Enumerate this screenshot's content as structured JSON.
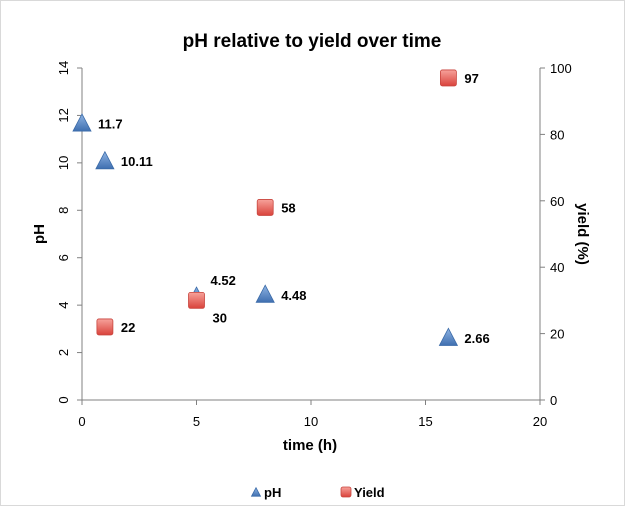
{
  "chart_data": {
    "type": "scatter",
    "title": "pH relative to yield over time",
    "xlabel": "time (h)",
    "ylabel": "pH",
    "y2label": "yield (%)",
    "xlim": [
      0,
      20
    ],
    "ylim": [
      0,
      14
    ],
    "y2lim": [
      0,
      100
    ],
    "x_ticks": [
      "0",
      "5",
      "10",
      "15",
      "20"
    ],
    "y_ticks": [
      "0",
      "2",
      "4",
      "6",
      "8",
      "10",
      "12",
      "14"
    ],
    "y2_ticks": [
      "0",
      "20",
      "40",
      "60",
      "80",
      "100"
    ],
    "grid": false,
    "legend_position": "bottom",
    "series": [
      {
        "name": "pH",
        "axis": "left",
        "marker": "triangle",
        "color": "#4f81bd",
        "points": [
          {
            "x": 0,
            "y": 11.7,
            "label": "11.7"
          },
          {
            "x": 1,
            "y": 10.11,
            "label": "10.11"
          },
          {
            "x": 5,
            "y": 4.52,
            "label": "4.52"
          },
          {
            "x": 8,
            "y": 4.48,
            "label": "4.48"
          },
          {
            "x": 16,
            "y": 2.66,
            "label": "2.66"
          }
        ]
      },
      {
        "name": "Yield",
        "axis": "right",
        "marker": "square",
        "color": "#e8605a",
        "points": [
          {
            "x": 1,
            "y": 22,
            "label": "22"
          },
          {
            "x": 5,
            "y": 30,
            "label": "30"
          },
          {
            "x": 8,
            "y": 58,
            "label": "58"
          },
          {
            "x": 16,
            "y": 97,
            "label": "97"
          }
        ]
      }
    ]
  }
}
